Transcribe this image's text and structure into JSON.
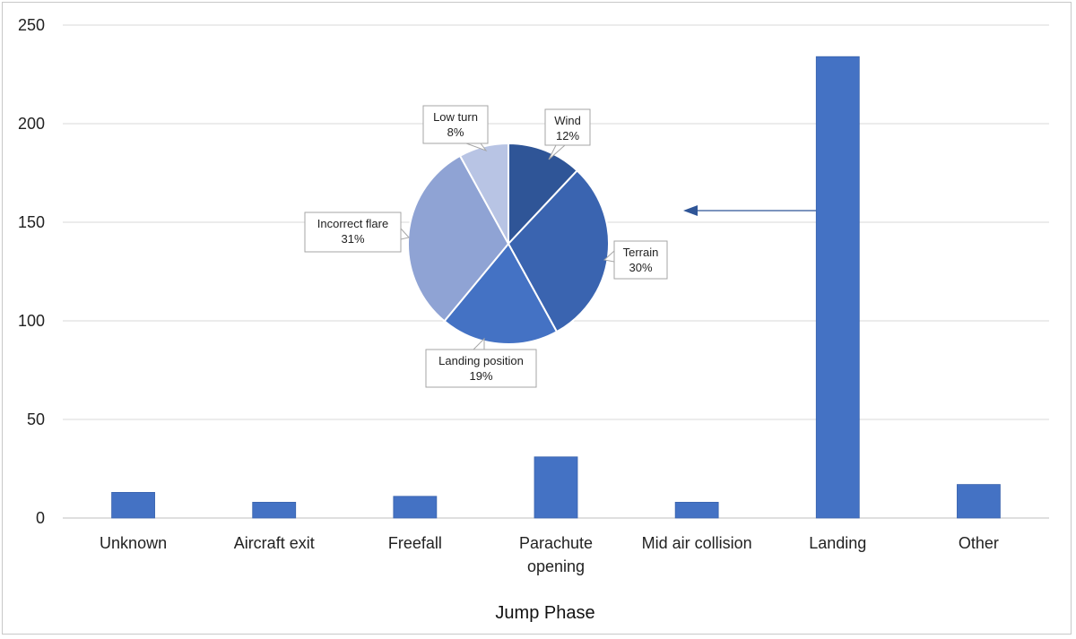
{
  "chart_data": [
    {
      "type": "bar",
      "xlabel": "Jump Phase",
      "ylabel": "",
      "ylim": [
        0,
        250
      ],
      "yticks": [
        0,
        50,
        100,
        150,
        200,
        250
      ],
      "grid": true,
      "categories": [
        "Unknown",
        "Aircraft exit",
        "Freefall",
        "Parachute opening",
        "Mid air collision",
        "Landing",
        "Other"
      ],
      "category_lines": [
        [
          "Unknown"
        ],
        [
          "Aircraft exit"
        ],
        [
          "Freefall"
        ],
        [
          "Parachute",
          "opening"
        ],
        [
          "Mid air collision"
        ],
        [
          "Landing"
        ],
        [
          "Other"
        ]
      ],
      "values": [
        13,
        8,
        11,
        31,
        8,
        234,
        17
      ],
      "color": "#4472c4"
    },
    {
      "type": "pie",
      "detail_of": "Landing",
      "slices": [
        {
          "label": "Wind",
          "value": 12,
          "pct_label": "12%",
          "color": "#2f5597"
        },
        {
          "label": "Terrain",
          "value": 30,
          "pct_label": "30%",
          "color": "#3a64b0"
        },
        {
          "label": "Landing position",
          "value": 19,
          "pct_label": "19%",
          "color": "#4472c4"
        },
        {
          "label": "Incorrect flare",
          "value": 31,
          "pct_label": "31%",
          "color": "#8fa3d4"
        },
        {
          "label": "Low turn",
          "value": 8,
          "pct_label": "8%",
          "color": "#b8c4e4"
        }
      ]
    }
  ]
}
